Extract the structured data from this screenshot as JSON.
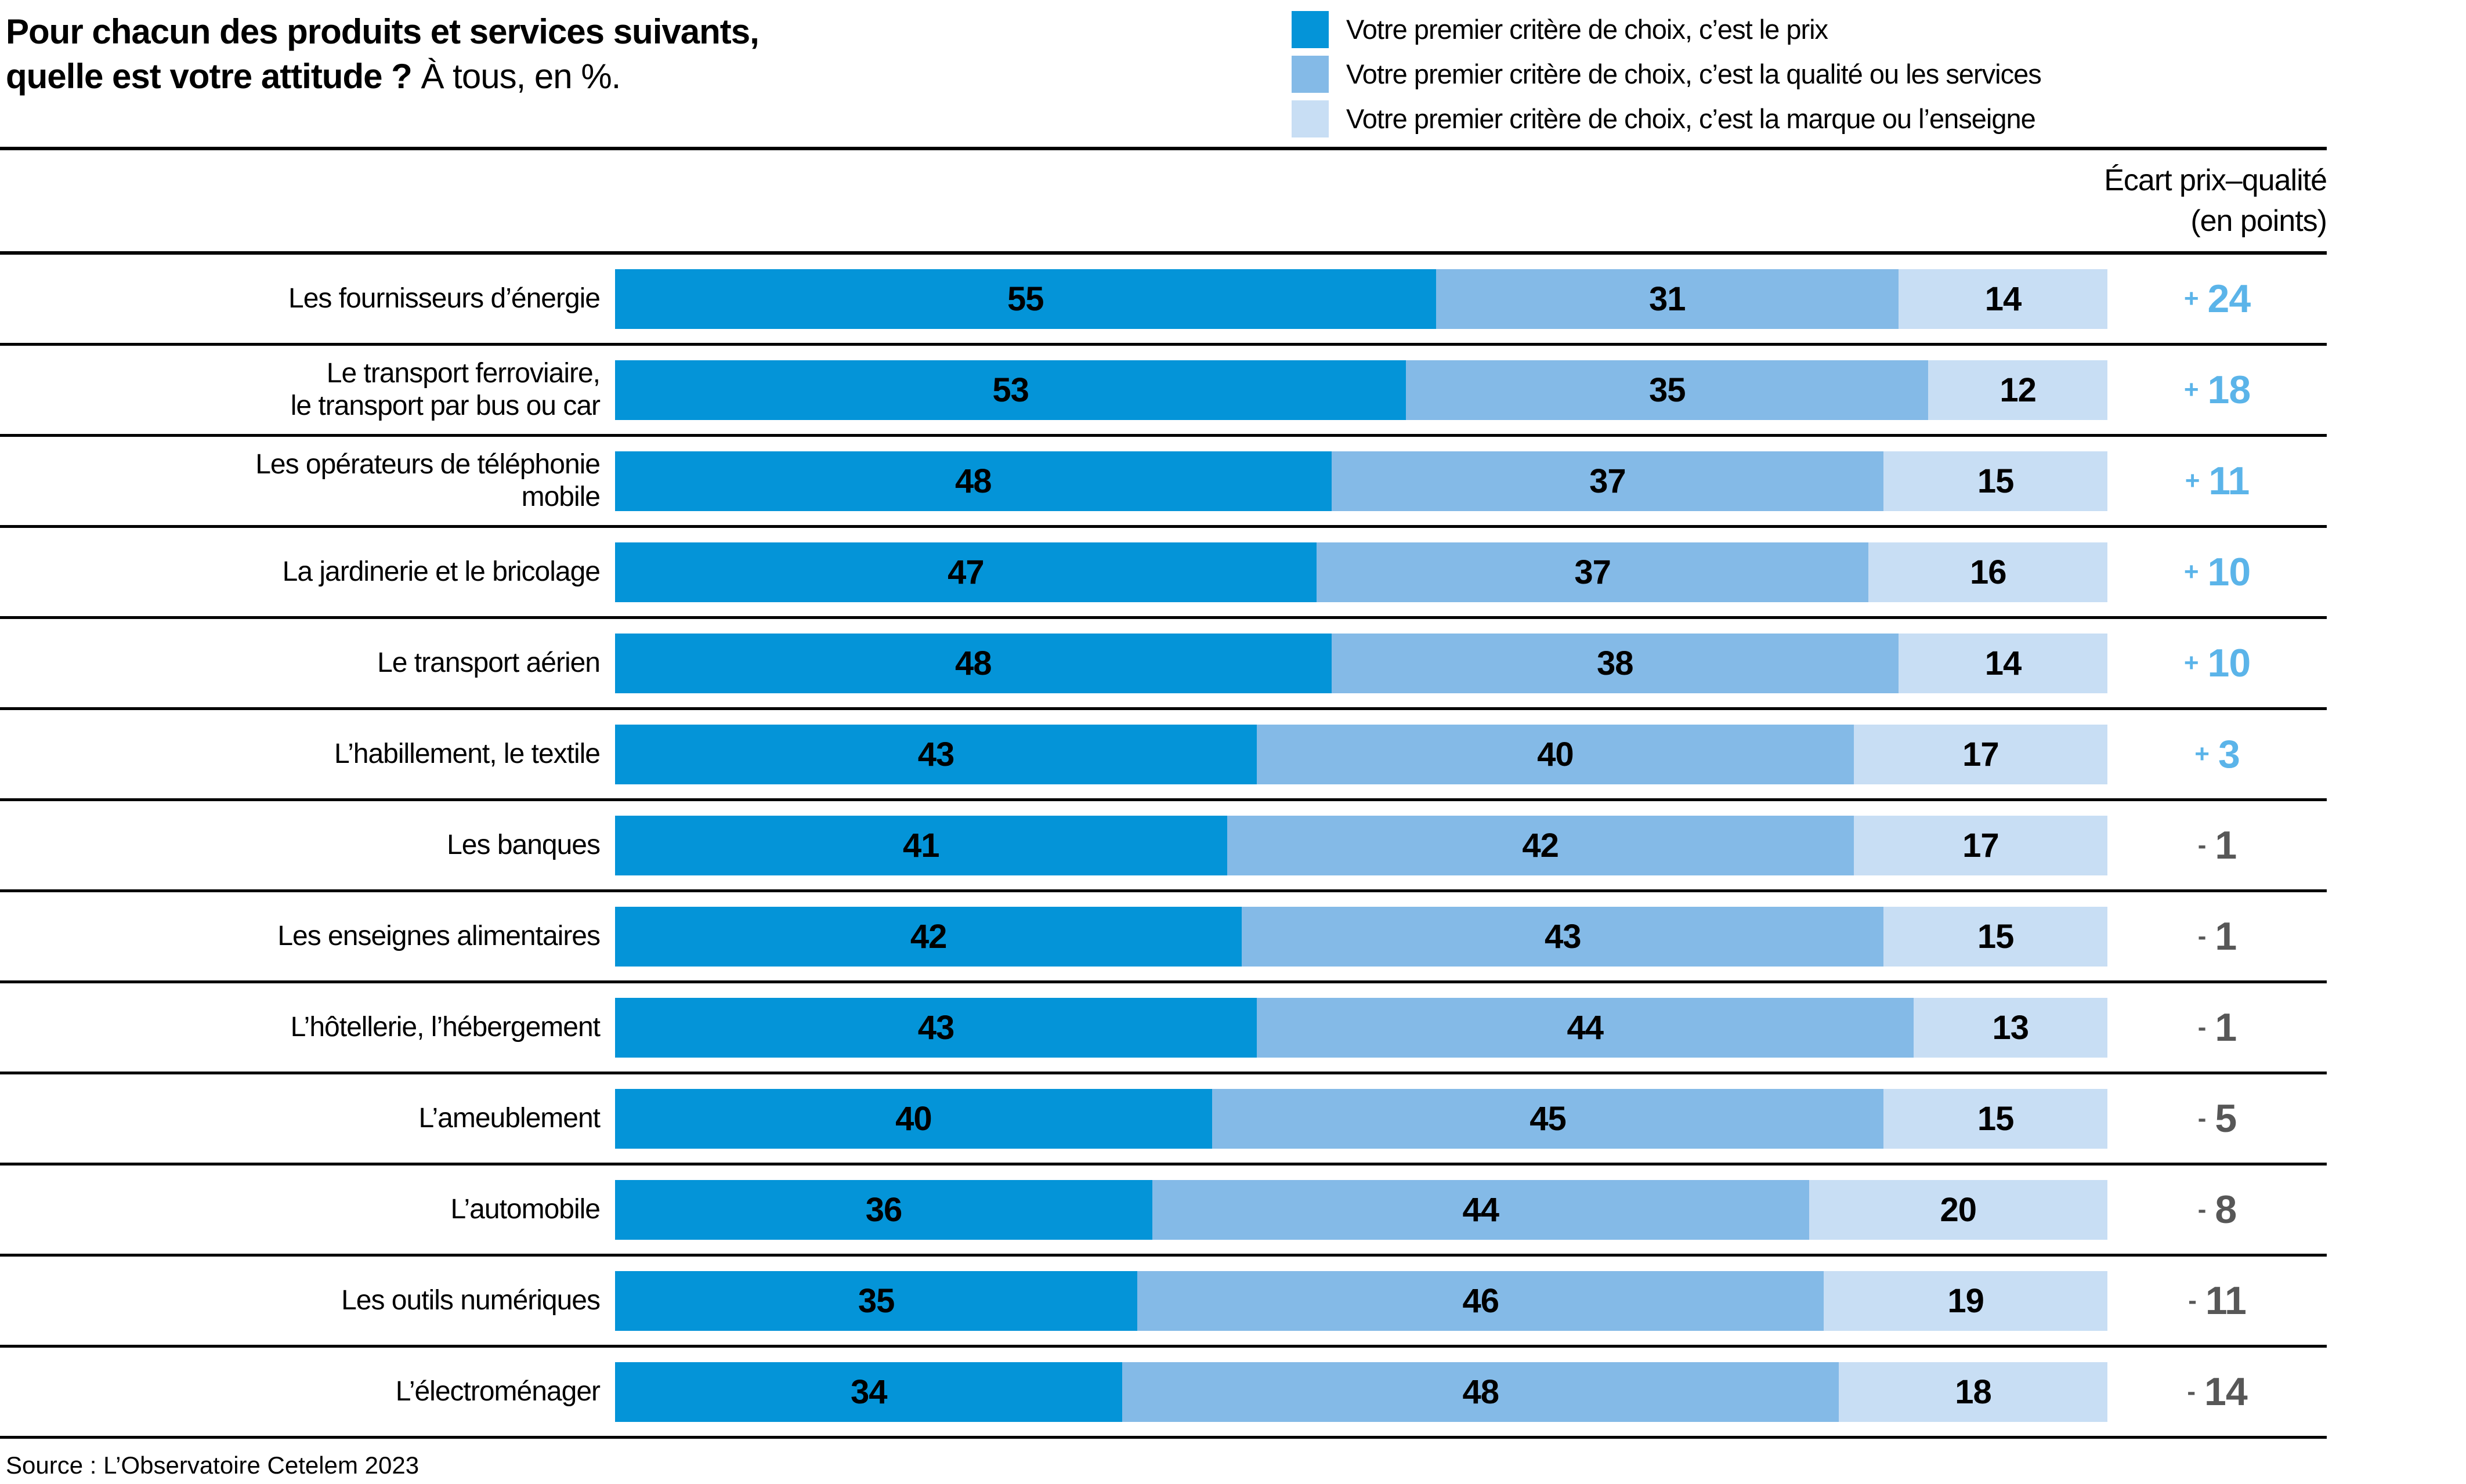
{
  "title": {
    "line1": "Pour chacun des produits et services suivants,",
    "line2_bold": "quelle est votre attitude ?",
    "line2_normal": " À tous, en %."
  },
  "ecart_header": {
    "line1": "Écart prix–qualité",
    "line2": "(en points)"
  },
  "source": "Source : L’Observatoire Cetelem 2023",
  "colors": {
    "bar_prix": "#0494d8",
    "bar_qualite": "#84bae7",
    "bar_marque": "#c8def4",
    "ecart_positive": "#5bb4e9",
    "ecart_negative": "#575757",
    "separator_line": "#000000"
  },
  "chart_data": {
    "type": "bar",
    "orientation": "horizontal",
    "stacked": true,
    "unit": "%",
    "x_max": 100,
    "grid": "row separator lines only",
    "legend_position": "top-right",
    "categories": [
      "Les fournisseurs d’énergie",
      "Le transport ferroviaire,\nle transport par bus ou car",
      "Les opérateurs de téléphonie\nmobile",
      "La jardinerie et le bricolage",
      "Le transport aérien",
      "L’habillement, le textile",
      "Les banques",
      "Les enseignes alimentaires",
      "L’hôtellerie, l’hébergement",
      "L’ameublement",
      "L’automobile",
      "Les outils numériques",
      "L’électroménager"
    ],
    "series": [
      {
        "name": "Votre premier critère de choix, c’est le prix",
        "color": "#0494d8",
        "values": [
          55,
          53,
          48,
          47,
          48,
          43,
          41,
          42,
          43,
          40,
          36,
          35,
          34
        ]
      },
      {
        "name": "Votre premier critère de choix, c’est la qualité ou les services",
        "color": "#84bae7",
        "values": [
          31,
          35,
          37,
          37,
          38,
          40,
          42,
          43,
          44,
          45,
          44,
          46,
          48
        ]
      },
      {
        "name": "Votre premier critère de choix, c’est la marque ou l’enseigne",
        "color": "#c8def4",
        "values": [
          14,
          12,
          15,
          16,
          14,
          17,
          17,
          15,
          13,
          15,
          20,
          19,
          18
        ]
      }
    ],
    "ecart_label": "Écart prix–qualité (en points)",
    "ecart": [
      {
        "sign": "+",
        "value": 24
      },
      {
        "sign": "+",
        "value": 18
      },
      {
        "sign": "+",
        "value": 11
      },
      {
        "sign": "+",
        "value": 10
      },
      {
        "sign": "+",
        "value": 10
      },
      {
        "sign": "+",
        "value": 3
      },
      {
        "sign": "-",
        "value": 1
      },
      {
        "sign": "-",
        "value": 1
      },
      {
        "sign": "-",
        "value": 1
      },
      {
        "sign": "-",
        "value": 5
      },
      {
        "sign": "-",
        "value": 8
      },
      {
        "sign": "-",
        "value": 11
      },
      {
        "sign": "-",
        "value": 14
      }
    ]
  }
}
